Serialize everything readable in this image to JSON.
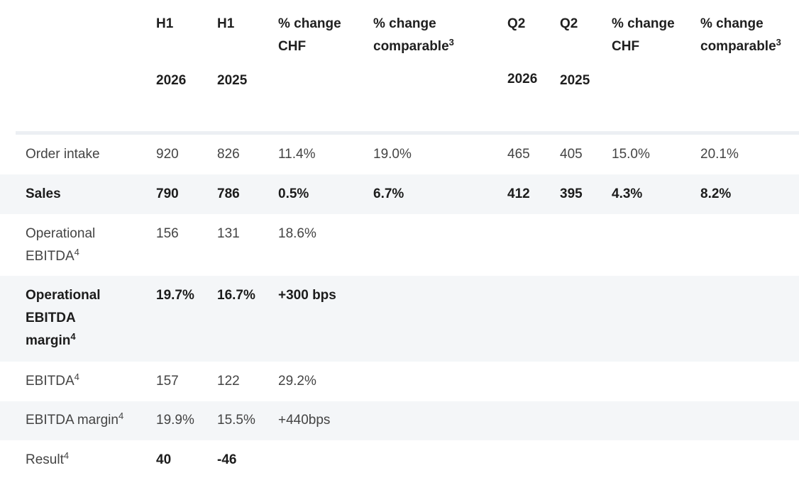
{
  "header": {
    "h1_2026": {
      "period": "H1",
      "year": "2026"
    },
    "h1_2025": {
      "period": "H1",
      "year": "2025"
    },
    "pct_chf_h1": {
      "line1": "% change",
      "line2": "CHF"
    },
    "pct_comp_h1": {
      "line1": "% change",
      "line2": "comparable",
      "sup": "3"
    },
    "q2_2026": {
      "period": "Q2",
      "year": "2026"
    },
    "q2_2025": {
      "period": "Q2",
      "year": "2025"
    },
    "pct_chf_q2": {
      "line1": "% change",
      "line2": "CHF"
    },
    "pct_comp_q2": {
      "line1": "% change",
      "line2": "comparable",
      "sup": "3"
    }
  },
  "rows": [
    {
      "label": "Order intake",
      "sup": "",
      "h1_2026": "920",
      "h1_2025": "826",
      "pct_chf_h1": "11.4%",
      "pct_comp_h1": "19.0%",
      "q2_2026": "465",
      "q2_2025": "405",
      "pct_chf_q2": "15.0%",
      "pct_comp_q2": "20.1%"
    },
    {
      "label": "Sales",
      "sup": "",
      "h1_2026": "790",
      "h1_2025": "786",
      "pct_chf_h1": "0.5%",
      "pct_comp_h1": "6.7%",
      "q2_2026": "412",
      "q2_2025": "395",
      "pct_chf_q2": "4.3%",
      "pct_comp_q2": "8.2%"
    },
    {
      "label_line1": "Operational",
      "label_line2": "EBITDA",
      "sup": "4",
      "h1_2026": "156",
      "h1_2025": "131",
      "pct_chf_h1": "18.6%"
    },
    {
      "label_line1": "Operational",
      "label_line2": "EBITDA",
      "label_line3": "margin",
      "sup": "4",
      "h1_2026": "19.7%",
      "h1_2025": "16.7%",
      "pct_chf_h1": "+300 bps"
    },
    {
      "label": "EBITDA",
      "sup": "4",
      "h1_2026": "157",
      "h1_2025": "122",
      "pct_chf_h1": "29.2%"
    },
    {
      "label": "EBITDA margin",
      "sup": "4",
      "h1_2026": "19.9%",
      "h1_2025": "15.5%",
      "pct_chf_h1": "+440bps"
    },
    {
      "label": "Result",
      "sup": "4",
      "h1_2026": "40",
      "h1_2025": "-46"
    }
  ]
}
